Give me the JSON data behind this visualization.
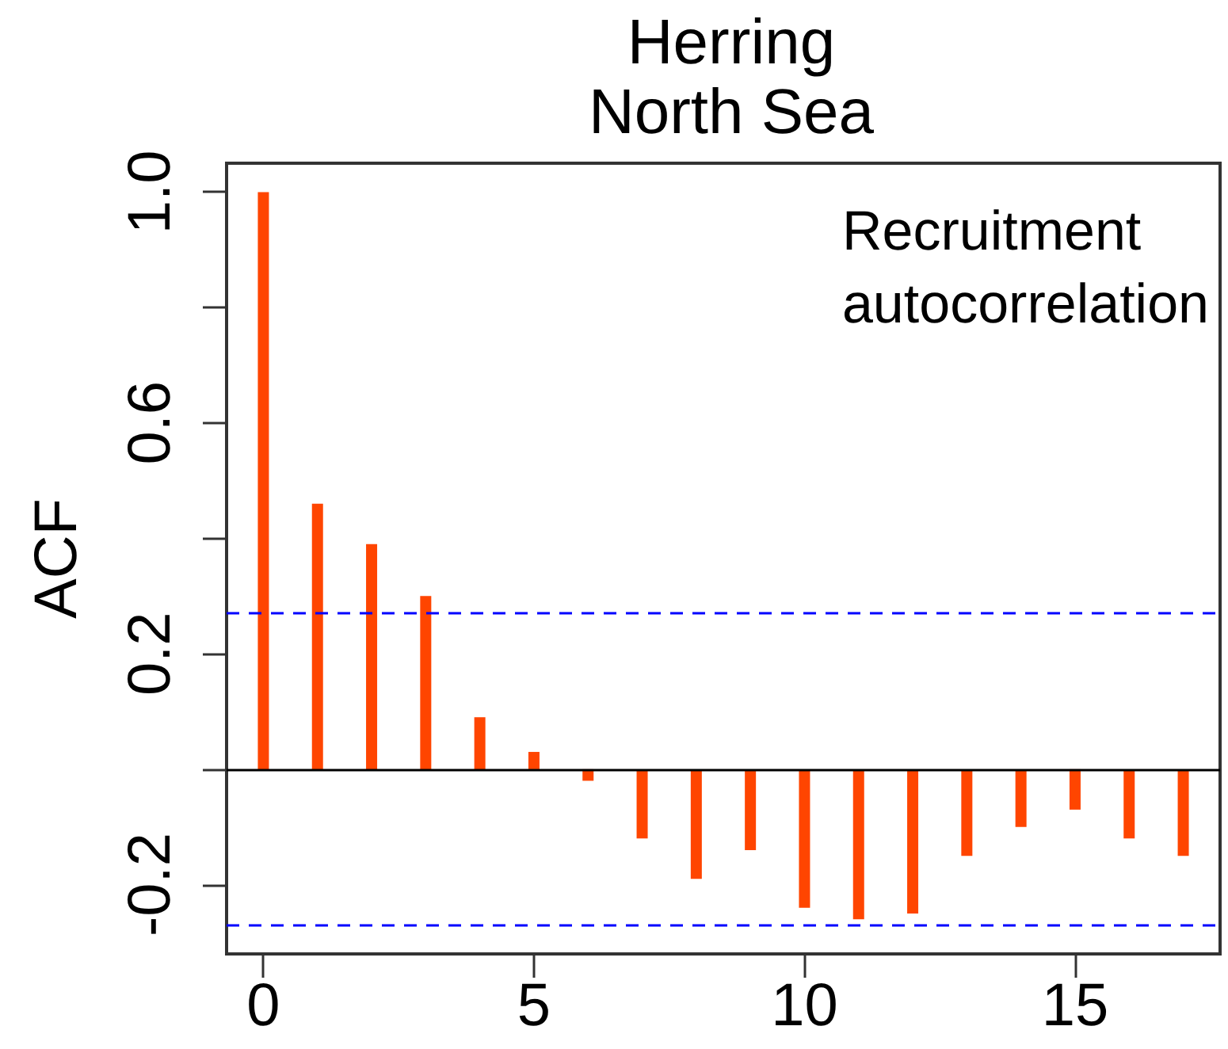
{
  "chart_data": {
    "type": "bar",
    "title": "Herring",
    "subtitle": "North Sea",
    "ylabel": "ACF",
    "annotations": [
      "Recruitment\nautocorrelation"
    ],
    "x": [
      0,
      1,
      2,
      3,
      4,
      5,
      6,
      7,
      8,
      9,
      10,
      11,
      12,
      13,
      14,
      15,
      16,
      17
    ],
    "values": [
      1.0,
      0.46,
      0.39,
      0.3,
      0.09,
      0.03,
      -0.02,
      -0.12,
      -0.19,
      -0.14,
      -0.24,
      -0.26,
      -0.25,
      -0.15,
      -0.1,
      -0.07,
      -0.12,
      -0.15
    ],
    "color": "#ff4500",
    "xlim": [
      -0.68,
      17.68
    ],
    "xticks": [
      0,
      5,
      10,
      15
    ],
    "ylim": [
      -0.32,
      1.05
    ],
    "yticks": [
      -0.2,
      {
        "value": 0,
        "label": null
      },
      0.2,
      {
        "value": 0.4,
        "label": null
      },
      0.6,
      {
        "value": 0.8,
        "label": null
      },
      {
        "value": 1,
        "label": "1.0"
      }
    ],
    "ref_lines": [
      {
        "axis": "y",
        "value": 0,
        "color": "#000000",
        "line_style": "solid"
      },
      {
        "axis": "y",
        "value": 0.27,
        "color": "#0000ff",
        "line_style": "dashed"
      },
      {
        "axis": "y",
        "value": -0.27,
        "color": "#0000ff",
        "line_style": "dashed"
      }
    ],
    "grid": false
  }
}
